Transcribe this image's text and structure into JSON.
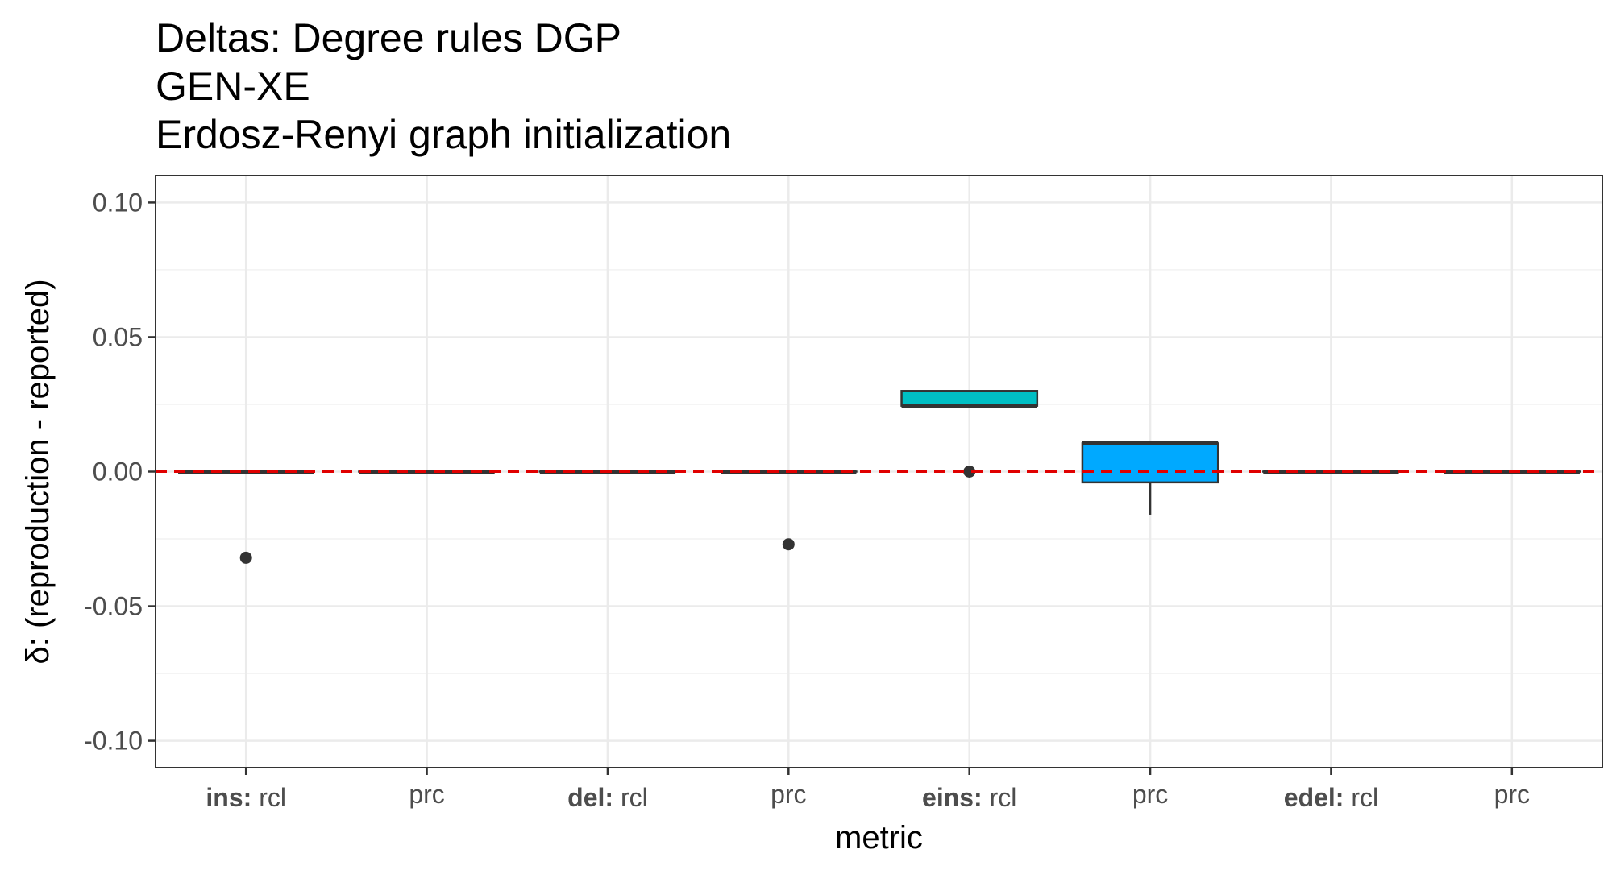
{
  "chart_data": {
    "type": "boxplot",
    "title_lines": [
      "Deltas: Degree rules DGP",
      "GEN-XE",
      "Erdosz-Renyi graph initialization"
    ],
    "xlabel": "metric",
    "ylabel": "δ: (reproduction - reported)",
    "ylim": [
      -0.11,
      0.11
    ],
    "yticks": [
      0.1,
      0.05,
      0.0,
      -0.05,
      -0.1
    ],
    "ytick_labels": [
      "0.10",
      "0.05",
      "0.00",
      "-0.05",
      "-0.10"
    ],
    "grid": true,
    "legend": "none",
    "reference_line": {
      "y": 0.0,
      "color": "#e00000",
      "style": "dashed"
    },
    "categories": [
      {
        "bold": "ins:",
        "label": "rcl",
        "q1": 0.0,
        "median": 0.0,
        "q3": 0.0,
        "whisker_low": 0.0,
        "whisker_high": 0.0,
        "outliers": [
          -0.032
        ],
        "fill": "#f8766d"
      },
      {
        "bold": "",
        "label": "prc",
        "q1": 0.0,
        "median": 0.0,
        "q3": 0.0,
        "whisker_low": 0.0,
        "whisker_high": 0.0,
        "outliers": [],
        "fill": "#cd9600"
      },
      {
        "bold": "del:",
        "label": "rcl",
        "q1": 0.0,
        "median": 0.0,
        "q3": 0.0,
        "whisker_low": 0.0,
        "whisker_high": 0.0,
        "outliers": [],
        "fill": "#7cae00"
      },
      {
        "bold": "",
        "label": "prc",
        "q1": 0.0,
        "median": 0.0,
        "q3": 0.0,
        "whisker_low": 0.0,
        "whisker_high": 0.0,
        "outliers": [
          -0.027
        ],
        "fill": "#00be67"
      },
      {
        "bold": "eins:",
        "label": "rcl",
        "q1": 0.0245,
        "median": 0.0245,
        "q3": 0.03,
        "whisker_low": 0.0245,
        "whisker_high": 0.03,
        "outliers": [
          0.0
        ],
        "fill": "#00bfc4"
      },
      {
        "bold": "",
        "label": "prc",
        "q1": -0.004,
        "median": 0.0105,
        "q3": 0.0105,
        "whisker_low": -0.016,
        "whisker_high": 0.0105,
        "outliers": [],
        "fill": "#00a9ff"
      },
      {
        "bold": "edel:",
        "label": "rcl",
        "q1": 0.0,
        "median": 0.0,
        "q3": 0.0,
        "whisker_low": 0.0,
        "whisker_high": 0.0,
        "outliers": [],
        "fill": "#c77cff"
      },
      {
        "bold": "",
        "label": "prc",
        "q1": 0.0,
        "median": 0.0,
        "q3": 0.0,
        "whisker_low": 0.0,
        "whisker_high": 0.0,
        "outliers": [],
        "fill": "#ff61cc"
      }
    ]
  }
}
